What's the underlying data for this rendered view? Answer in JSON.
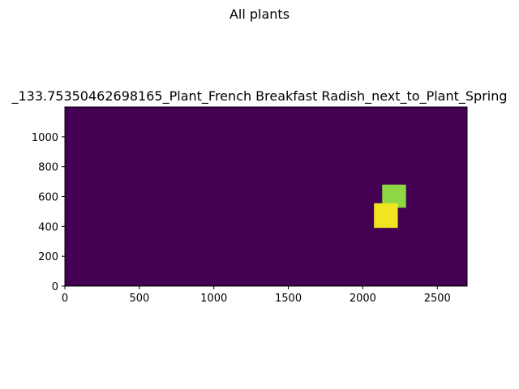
{
  "figure": {
    "suptitle": "All plants"
  },
  "chart_data": {
    "type": "heatmap",
    "title": "_133.75350462698165_Plant_French Breakfast Radish_next_to_Plant_Spring",
    "xlim": [
      0,
      2700
    ],
    "ylim": [
      0,
      1200
    ],
    "xticks": [
      "0",
      "500",
      "1000",
      "1500",
      "2000",
      "2500"
    ],
    "xtick_values": [
      0,
      500,
      1000,
      1500,
      2000,
      2500
    ],
    "yticks": [
      "0",
      "200",
      "400",
      "600",
      "800",
      "1000"
    ],
    "ytick_values": [
      0,
      200,
      400,
      600,
      800,
      1000
    ],
    "grid": false,
    "colormap": "viridis",
    "background_color": "#440154",
    "cells": [
      {
        "x0": 2130,
        "x1": 2290,
        "y0": 525,
        "y1": 680,
        "color": "#8fd744"
      },
      {
        "x0": 2075,
        "x1": 2235,
        "y0": 390,
        "y1": 555,
        "color": "#f0e51f"
      }
    ]
  }
}
